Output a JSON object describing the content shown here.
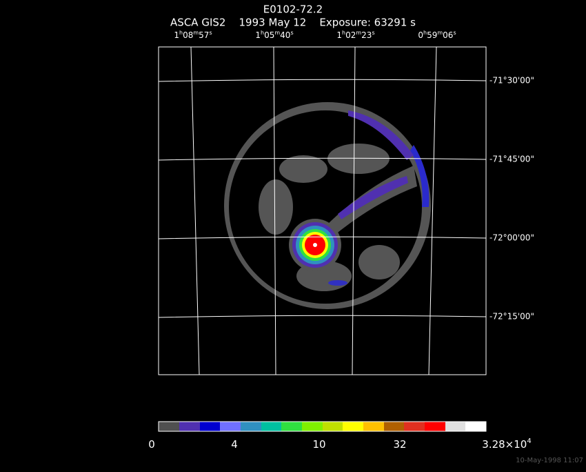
{
  "title": "E0102-72.2",
  "subtitle": "ASCA GIS2    1993 May 12    Exposure: 63291 s",
  "ra_labels": [
    [
      "1",
      "h",
      "08",
      "m",
      "57",
      "s"
    ],
    [
      "1",
      "h",
      "05",
      "m",
      "40",
      "s"
    ],
    [
      "1",
      "h",
      "02",
      "m",
      "23",
      "s"
    ],
    [
      "0",
      "h",
      "59",
      "m",
      "06",
      "s"
    ]
  ],
  "dec_labels": [
    "-71°30'00\"",
    "-71°45'00\"",
    "-72°00'00\"",
    "-72°15'00\""
  ],
  "colorbar_labels": [
    "0",
    "4",
    "10",
    "32"
  ],
  "colorbar_max": [
    "3.28×10",
    "4"
  ],
  "footer": "10-May-1998 11:07"
}
